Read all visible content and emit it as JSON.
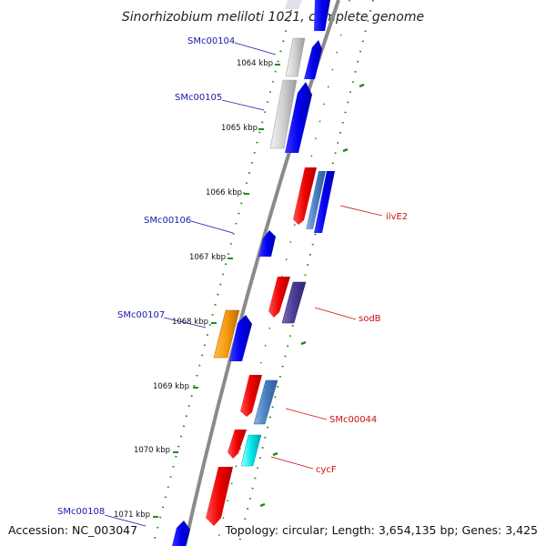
{
  "title": "Sinorhizobium meliloti 1021, complete genome",
  "footer": {
    "accession": "Accession: NC_003047",
    "topology": "Topology: circular; Length: 3,654,135 bp; Genes: 3,425"
  },
  "colors": {
    "backbone": "#777777",
    "gc_ticks": "#1e8a1e",
    "left_label": "#1a1aa8",
    "right_label": "#cc1111",
    "strand_plus": "#0000ee",
    "strand_minus": "#ee0000"
  },
  "kbp_ticks": [
    {
      "pos": 1064,
      "label": "1064 kbp"
    },
    {
      "pos": 1065,
      "label": "1065 kbp"
    },
    {
      "pos": 1066,
      "label": "1066 kbp"
    },
    {
      "pos": 1067,
      "label": "1067 kbp"
    },
    {
      "pos": 1068,
      "label": "1068 kbp"
    },
    {
      "pos": 1069,
      "label": "1069 kbp"
    },
    {
      "pos": 1070,
      "label": "1070 kbp"
    },
    {
      "pos": 1071,
      "label": "1071 kbp"
    }
  ],
  "gene_labels_left": [
    "SMc00104",
    "SMc00105",
    "SMc00106",
    "SMc00107",
    "SMc00108"
  ],
  "gene_labels_right": [
    "ilvE2",
    "sodB",
    "SMc00044",
    "cycF"
  ]
}
